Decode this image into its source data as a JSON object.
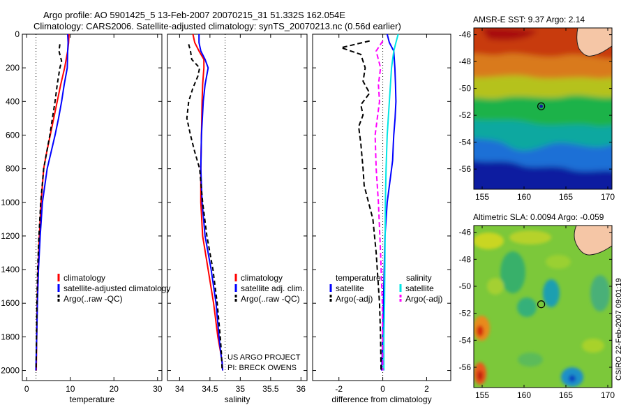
{
  "header": {
    "line1": "Argo profile: AO 5901425_5 13-Feb-2007 20070215_31 51.332S 162.054E",
    "line2": "Climatology: CARS2006. Satellite-adjusted climatology: synTS_20070213.nc (0.56d earlier)"
  },
  "footer": {
    "credit1": "US ARGO PROJECT",
    "credit2": "PI: BRECK OWENS",
    "stamp": "CSIRO 22-Feb-2007 09:01:19"
  },
  "colors": {
    "climatology": "#ff0000",
    "satellite": "#0000ff",
    "argo": "#000000",
    "sal_satellite": "#00e5e5",
    "sal_argo": "#ff00ff",
    "zero_line": "#000000"
  },
  "chart_data": [
    {
      "type": "line",
      "id": "temperature",
      "xlabel": "temperature",
      "ylabel": "",
      "xlim": [
        -1,
        31
      ],
      "ylim": [
        2060,
        0
      ],
      "xticks": [
        0,
        10,
        20,
        30
      ],
      "yticks": [
        0,
        200,
        400,
        600,
        800,
        1000,
        1200,
        1400,
        1600,
        1800,
        2000
      ],
      "vline": 2.14,
      "legend": [
        "climatology",
        "satellite-adjusted climatology",
        "Argo(..raw -QC)"
      ],
      "series": [
        {
          "name": "climatology",
          "color": "red",
          "dash": "",
          "x": [
            9.7,
            9.6,
            9.4,
            8.7,
            7.8,
            7.0,
            6.2,
            5.4,
            4.6,
            3.9,
            3.3,
            2.9,
            2.6,
            2.4,
            2.3,
            2.25,
            2.2
          ],
          "y": [
            0,
            50,
            100,
            200,
            300,
            400,
            500,
            600,
            700,
            800,
            1000,
            1200,
            1400,
            1600,
            1800,
            1900,
            2000
          ]
        },
        {
          "name": "satellite-adjusted climatology",
          "color": "blue",
          "dash": "",
          "x": [
            9.4,
            9.5,
            9.4,
            9.3,
            8.6,
            8.0,
            7.3,
            6.5,
            5.6,
            4.7,
            3.6,
            3.1,
            2.7,
            2.45,
            2.3,
            2.2,
            2.1
          ],
          "y": [
            0,
            50,
            100,
            200,
            300,
            400,
            500,
            600,
            700,
            800,
            1000,
            1200,
            1400,
            1600,
            1800,
            1900,
            2000
          ]
        },
        {
          "name": "Argo(..raw -QC)",
          "color": "black",
          "dash": "6,4",
          "x": [
            7.6,
            7.4,
            8.0,
            7.6,
            7.0,
            6.5,
            5.9,
            5.3,
            4.6,
            3.9,
            3.2,
            2.8,
            2.5,
            2.35,
            2.25,
            2.2,
            2.15
          ],
          "y": [
            60,
            100,
            160,
            200,
            300,
            400,
            500,
            600,
            700,
            800,
            1000,
            1200,
            1400,
            1600,
            1800,
            1900,
            2000
          ]
        }
      ]
    },
    {
      "type": "line",
      "id": "salinity",
      "xlabel": "salinity",
      "ylabel": "",
      "xlim": [
        33.8,
        36.1
      ],
      "ylim": [
        2060,
        0
      ],
      "xticks": [
        34,
        34.5,
        35,
        35.5,
        36
      ],
      "yticks": [],
      "vline": 34.75,
      "legend": [
        "climatology",
        "satellite adj. clim.",
        "Argo(..raw -QC)"
      ],
      "series": [
        {
          "name": "climatology",
          "color": "red",
          "dash": "",
          "x": [
            34.22,
            34.25,
            34.32,
            34.4,
            34.4,
            34.38,
            34.37,
            34.36,
            34.35,
            34.35,
            34.38,
            34.47,
            34.56,
            34.63,
            34.68,
            34.7,
            34.71
          ],
          "y": [
            0,
            50,
            100,
            150,
            200,
            300,
            400,
            600,
            800,
            1000,
            1200,
            1400,
            1600,
            1800,
            1900,
            1950,
            2000
          ]
        },
        {
          "name": "satellite adj. clim.",
          "color": "blue",
          "dash": "",
          "x": [
            34.32,
            34.32,
            34.35,
            34.42,
            34.47,
            34.42,
            34.39,
            34.36,
            34.35,
            34.37,
            34.42,
            34.52,
            34.6,
            34.65,
            34.68,
            34.7,
            34.71
          ],
          "y": [
            0,
            50,
            100,
            150,
            200,
            300,
            400,
            600,
            800,
            1000,
            1200,
            1400,
            1600,
            1800,
            1900,
            1950,
            2000
          ]
        },
        {
          "name": "Argo(..raw -QC)",
          "color": "black",
          "dash": "6,4",
          "x": [
            34.15,
            34.18,
            34.2,
            34.33,
            34.3,
            34.22,
            34.15,
            34.12,
            34.18,
            34.25,
            34.33,
            34.38,
            34.45,
            34.55,
            34.62,
            34.67,
            34.69,
            34.7
          ],
          "y": [
            60,
            100,
            150,
            200,
            250,
            320,
            400,
            500,
            600,
            700,
            800,
            1000,
            1200,
            1400,
            1600,
            1800,
            1900,
            2000
          ]
        }
      ]
    },
    {
      "type": "line",
      "id": "difference",
      "xlabel": "difference from climatology",
      "ylabel": "",
      "xlim": [
        -3.2,
        3.1
      ],
      "ylim": [
        2060,
        0
      ],
      "xticks": [
        -2,
        0,
        2
      ],
      "yticks": [],
      "vline": 0,
      "legend_temperature_title": "temperature",
      "legend_salinity_title": "salinity",
      "legend": [
        "satellite",
        "Argo(-adj)",
        "satellite",
        "Argo(-adj)"
      ],
      "series": [
        {
          "name": "satellite",
          "group": "temperature",
          "color": "blue",
          "dash": "",
          "x": [
            0.2,
            0.3,
            0.5,
            0.55,
            0.58,
            0.6,
            0.56,
            0.5,
            0.48,
            0.45,
            0.35,
            0.2,
            0.1,
            0.05,
            0,
            -0.05
          ],
          "y": [
            0,
            50,
            100,
            200,
            300,
            400,
            500,
            600,
            650,
            750,
            850,
            1000,
            1200,
            1500,
            1800,
            2000
          ]
        },
        {
          "name": "Argo(-adj)",
          "group": "temperature",
          "color": "black",
          "dash": "7,4",
          "x": [
            -0.6,
            -1.9,
            -1.0,
            -0.8,
            -0.9,
            -0.6,
            -1.0,
            -0.9,
            -1.1,
            -1.0,
            -0.9,
            -0.85,
            -0.45,
            -0.3,
            -0.15,
            -0.1,
            -0.08
          ],
          "y": [
            40,
            80,
            120,
            200,
            280,
            350,
            420,
            480,
            550,
            650,
            800,
            900,
            1100,
            1300,
            1600,
            1800,
            2000
          ]
        },
        {
          "name": "satellite",
          "group": "salinity",
          "color": "cyan",
          "dash": "",
          "x": [
            0.7,
            0.6,
            0.5,
            0.4,
            0.3,
            0.2,
            0.15,
            0.12,
            0.1,
            0.08,
            0.05,
            0.05
          ],
          "y": [
            0,
            50,
            100,
            200,
            400,
            600,
            800,
            1000,
            1300,
            1600,
            1800,
            2000
          ]
        },
        {
          "name": "Argo(-adj)",
          "group": "salinity",
          "color": "magenta",
          "dash": "7,4",
          "x": [
            0,
            -0.3,
            -0.1,
            -0.2,
            -0.15,
            -0.25,
            -0.35,
            -0.3,
            -0.2,
            -0.1,
            -0.02,
            0
          ],
          "y": [
            40,
            100,
            200,
            300,
            400,
            500,
            600,
            800,
            1000,
            1300,
            1600,
            2000
          ]
        }
      ]
    },
    {
      "type": "heatmap",
      "id": "sst_map",
      "title": "AMSR-E SST: 9.37  Argo: 2.14",
      "xlim": [
        154,
        170.5
      ],
      "ylim": [
        -57.5,
        -45.5
      ],
      "xticks": [
        155,
        160,
        165,
        170
      ],
      "yticks": [
        -46,
        -48,
        -50,
        -52,
        -54,
        -56
      ],
      "float_position": {
        "lon": 162.05,
        "lat": -51.33
      }
    },
    {
      "type": "heatmap",
      "id": "sla_map",
      "title": "Altimetric SLA: 0.0094  Argo: -0.059",
      "xlim": [
        154,
        170.5
      ],
      "ylim": [
        -57.5,
        -45.5
      ],
      "xticks": [
        155,
        160,
        165,
        170
      ],
      "yticks": [
        -46,
        -48,
        -50,
        -52,
        -54,
        -56
      ],
      "float_position": {
        "lon": 162.05,
        "lat": -51.33
      }
    }
  ]
}
